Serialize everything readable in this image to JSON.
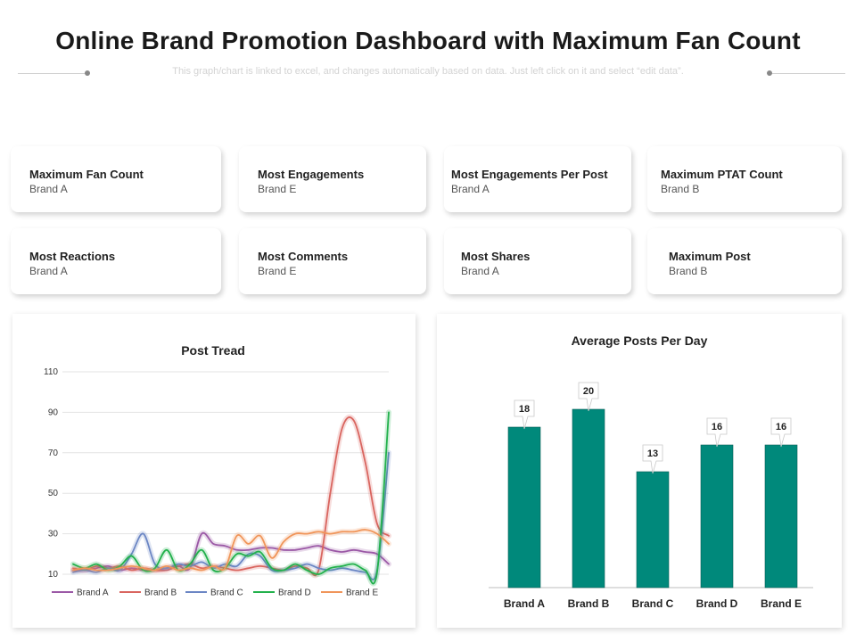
{
  "header": {
    "title": "Online Brand Promotion Dashboard with Maximum Fan Count",
    "subtitle": "This graph/chart is linked to excel, and changes automatically based on data. Just left click on it and select “edit data”."
  },
  "cards": [
    {
      "title": "Maximum Fan Count",
      "value": "Brand A"
    },
    {
      "title": "Most Engagements",
      "value": "Brand E"
    },
    {
      "title": "Most Engagements Per Post",
      "value": "Brand A"
    },
    {
      "title": "Maximum PTAT Count",
      "value": "Brand B"
    },
    {
      "title": "Most Reactions",
      "value": "Brand A"
    },
    {
      "title": "Most Comments",
      "value": "Brand E"
    },
    {
      "title": "Most Shares",
      "value": "Brand A"
    },
    {
      "title": "Maximum Post",
      "value": "Brand B"
    }
  ],
  "colors": {
    "bar": "#00897b",
    "grid": "#e3e3e3",
    "brand_a": "#9b59a6",
    "brand_b": "#d9655f",
    "brand_c": "#6b86c4",
    "brand_d": "#22b14c",
    "brand_e": "#f0955a"
  },
  "chart_data": [
    {
      "type": "line",
      "title": "Post Tread",
      "ylim": [
        10,
        110
      ],
      "yticks": [
        10,
        30,
        50,
        70,
        90,
        110
      ],
      "legend_position": "bottom",
      "x": [
        1,
        2,
        3,
        4,
        5,
        6,
        7,
        8,
        9,
        10,
        11,
        12,
        13,
        14,
        15,
        16,
        17,
        18,
        19,
        20,
        21,
        22,
        23,
        24,
        25,
        26,
        27,
        28
      ],
      "series": [
        {
          "name": "Brand A",
          "color_key": "brand_a",
          "values": [
            12,
            12,
            13,
            14,
            12,
            13,
            12,
            12,
            13,
            14,
            13,
            30,
            25,
            24,
            22,
            22,
            23,
            23,
            22,
            22,
            23,
            24,
            22,
            21,
            22,
            21,
            20,
            15
          ]
        },
        {
          "name": "Brand B",
          "color_key": "brand_b",
          "values": [
            13,
            12,
            14,
            13,
            14,
            12,
            13,
            12,
            12,
            14,
            15,
            13,
            14,
            13,
            12,
            13,
            14,
            13,
            12,
            14,
            13,
            12,
            50,
            82,
            86,
            65,
            35,
            29
          ]
        },
        {
          "name": "Brand C",
          "color_key": "brand_c",
          "values": [
            11,
            12,
            11,
            13,
            12,
            20,
            30,
            15,
            13,
            15,
            14,
            16,
            13,
            15,
            14,
            20,
            19,
            12,
            12,
            13,
            15,
            13,
            12,
            13,
            12,
            11,
            12,
            70
          ]
        },
        {
          "name": "Brand D",
          "color_key": "brand_d",
          "values": [
            15,
            13,
            15,
            12,
            14,
            19,
            12,
            13,
            22,
            12,
            15,
            22,
            12,
            13,
            20,
            19,
            21,
            13,
            12,
            15,
            12,
            10,
            13,
            14,
            15,
            12,
            11,
            90
          ]
        },
        {
          "name": "Brand E",
          "color_key": "brand_e",
          "values": [
            12,
            13,
            12,
            12,
            13,
            14,
            13,
            12,
            14,
            12,
            13,
            12,
            14,
            13,
            29,
            25,
            29,
            18,
            26,
            30,
            30,
            31,
            30,
            31,
            31,
            32,
            30,
            25
          ]
        }
      ]
    },
    {
      "type": "bar",
      "title": "Average Posts Per Day",
      "categories": [
        "Brand A",
        "Brand B",
        "Brand C",
        "Brand D",
        "Brand E"
      ],
      "values": [
        18,
        20,
        13,
        16,
        16
      ],
      "ylim": [
        0,
        22
      ],
      "xlabel": "",
      "ylabel": ""
    }
  ]
}
